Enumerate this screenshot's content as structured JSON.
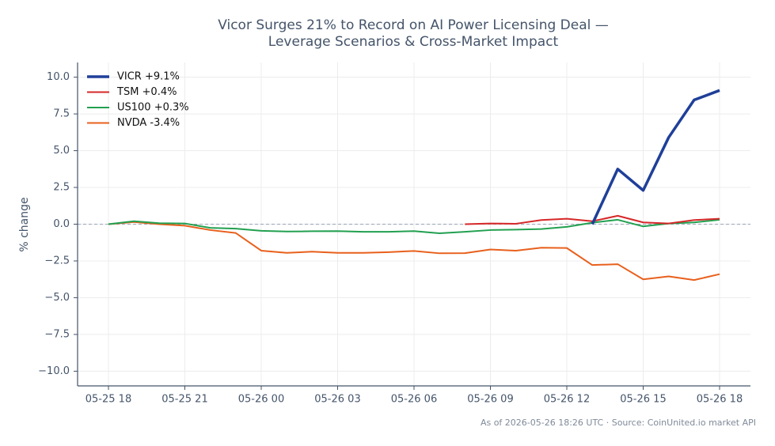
{
  "chart_data": {
    "type": "line",
    "title": [
      "Vicor Surges 21% to Record on AI Power Licensing Deal —",
      "Leverage Scenarios & Cross-Market Impact"
    ],
    "ylabel": "% change",
    "footnote": "As of 2026-05-26 18:26 UTC · Source: CoinUnited.io market API",
    "categories": [
      "05-25 18",
      null,
      null,
      "05-25 21",
      null,
      null,
      "05-26 00",
      null,
      null,
      "05-26 03",
      null,
      null,
      "05-26 06",
      null,
      null,
      "05-26 09",
      null,
      null,
      "05-26 12",
      null,
      null,
      "05-26 15",
      null,
      null,
      "05-26 18"
    ],
    "ylim": [
      -11,
      11
    ],
    "yticks": [
      {
        "value": -10,
        "label": "−10.0"
      },
      {
        "value": -7.5,
        "label": "−7.5"
      },
      {
        "value": -5,
        "label": "−5.0"
      },
      {
        "value": -2.5,
        "label": "−2.5"
      },
      {
        "value": 0,
        "label": "0.0"
      },
      {
        "value": 2.5,
        "label": "2.5"
      },
      {
        "value": 5,
        "label": "5.0"
      },
      {
        "value": 7.5,
        "label": "7.5"
      },
      {
        "value": 10,
        "label": "10.0"
      }
    ],
    "grid": true,
    "zero_line": true,
    "legend": "upper left",
    "series": [
      {
        "name": "VICR +9.1%",
        "color": "#1f3f99",
        "width": 3.5,
        "values": [
          null,
          null,
          null,
          null,
          null,
          null,
          null,
          null,
          null,
          null,
          null,
          null,
          null,
          null,
          null,
          null,
          null,
          null,
          null,
          0,
          3.75,
          2.3,
          5.9,
          8.45,
          9.1
        ]
      },
      {
        "name": "TSM +0.4%",
        "color": "#d62728",
        "width": 2,
        "values": [
          null,
          null,
          null,
          null,
          null,
          null,
          null,
          null,
          null,
          null,
          null,
          null,
          null,
          null,
          0,
          0.05,
          0.03,
          0.28,
          0.37,
          0.2,
          0.57,
          0.12,
          0.05,
          0.28,
          0.37
        ]
      },
      {
        "name": "US100 +0.3%",
        "color": "#22a050",
        "width": 2,
        "values": [
          0,
          0.2,
          0.07,
          0.05,
          -0.25,
          -0.3,
          -0.45,
          -0.5,
          -0.48,
          -0.47,
          -0.52,
          -0.52,
          -0.47,
          -0.62,
          -0.52,
          -0.4,
          -0.37,
          -0.33,
          -0.18,
          0.1,
          0.3,
          -0.15,
          0.05,
          0.12,
          0.3
        ]
      },
      {
        "name": "NVDA -3.4%",
        "color": "#e8601c",
        "width": 2,
        "values": [
          0,
          0.15,
          0,
          -0.1,
          -0.4,
          -0.6,
          -1.8,
          -1.95,
          -1.87,
          -1.95,
          -1.95,
          -1.9,
          -1.82,
          -1.98,
          -1.97,
          -1.72,
          -1.8,
          -1.6,
          -1.62,
          -2.78,
          -2.72,
          -3.75,
          -3.55,
          -3.8,
          -3.4
        ]
      }
    ]
  }
}
